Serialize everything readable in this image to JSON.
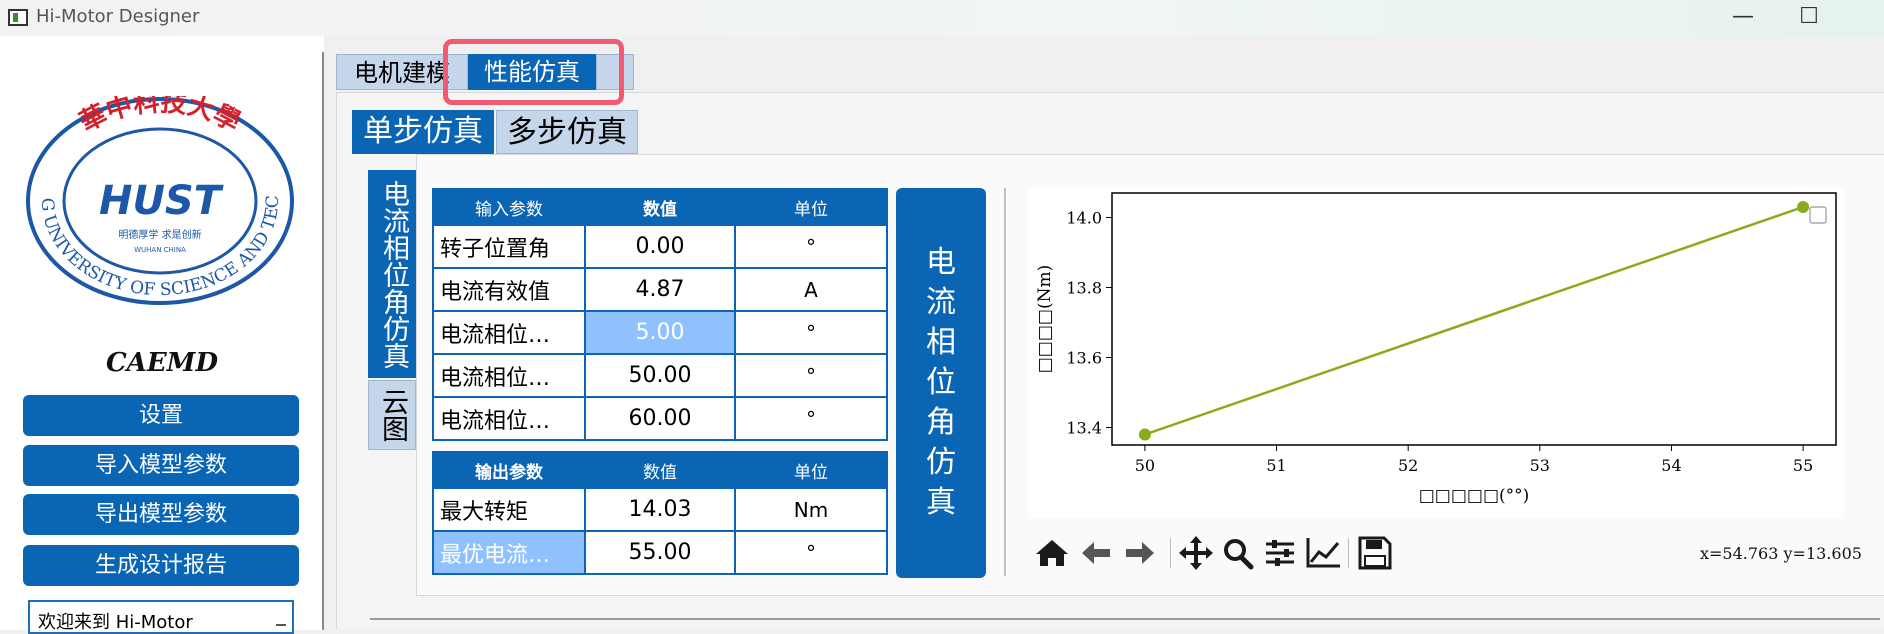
{
  "window": {
    "title": "Hi-Motor Designer",
    "minimize": "—",
    "maximize": "☐"
  },
  "left": {
    "logo": {
      "top_text": "華中科技大學",
      "ring_text": "HUAZHONG UNIVERSITY OF SCIENCE AND TECHNOLOGY",
      "badge": "HUST",
      "motto": "明德厚学 求是创新",
      "city": "WUHAN CHINA"
    },
    "brand": "CAEMD",
    "buttons": [
      "设置",
      "导入模型参数",
      "导出模型参数",
      "生成设计报告"
    ],
    "welcome": "欢迎来到 Hi-Motor"
  },
  "tabs": {
    "modeling": "电机建模",
    "simulation": "性能仿真"
  },
  "subtabs": {
    "single": "单步仿真",
    "multi": "多步仿真"
  },
  "vtabs": {
    "phase": "电流相位角仿真",
    "cloud": "云图"
  },
  "input_table": {
    "headers": [
      "输入参数",
      "数值",
      "单位"
    ],
    "rows": [
      {
        "label": "转子位置角",
        "value": "0.00",
        "unit": "°"
      },
      {
        "label": "电流有效值",
        "value": "4.87",
        "unit": "A"
      },
      {
        "label": "电流相位…",
        "value": "5.00",
        "unit": "°"
      },
      {
        "label": "电流相位…",
        "value": "50.00",
        "unit": "°"
      },
      {
        "label": "电流相位…",
        "value": "60.00",
        "unit": "°"
      }
    ]
  },
  "output_table": {
    "headers": [
      "输出参数",
      "数值",
      "单位"
    ],
    "rows": [
      {
        "label": "最大转矩",
        "value": "14.03",
        "unit": "Nm"
      },
      {
        "label": "最优电流…",
        "value": "55.00",
        "unit": "°"
      }
    ]
  },
  "run_button": "电流相位角仿真",
  "chart_data": {
    "type": "line",
    "x": [
      50,
      55
    ],
    "series": [
      {
        "values": [
          13.38,
          14.03
        ],
        "color": "#8aab1a"
      }
    ],
    "xlabel": "□□□□□(°°)",
    "ylabel": "□□□□(Nm)",
    "xlim": [
      49.75,
      55.25
    ],
    "ylim": [
      13.35,
      14.07
    ],
    "xticks": [
      "50",
      "51",
      "52",
      "53",
      "54",
      "55"
    ],
    "yticks": [
      "13.4",
      "13.6",
      "13.8",
      "14.0"
    ],
    "grid": false,
    "legend": "top-right"
  },
  "toolbar": {
    "icons": [
      "home-icon",
      "back-icon",
      "forward-icon",
      "pan-icon",
      "zoom-icon",
      "configure-icon",
      "edit-axis-icon",
      "save-icon"
    ]
  },
  "coord": "x=54.763 y=13.605"
}
